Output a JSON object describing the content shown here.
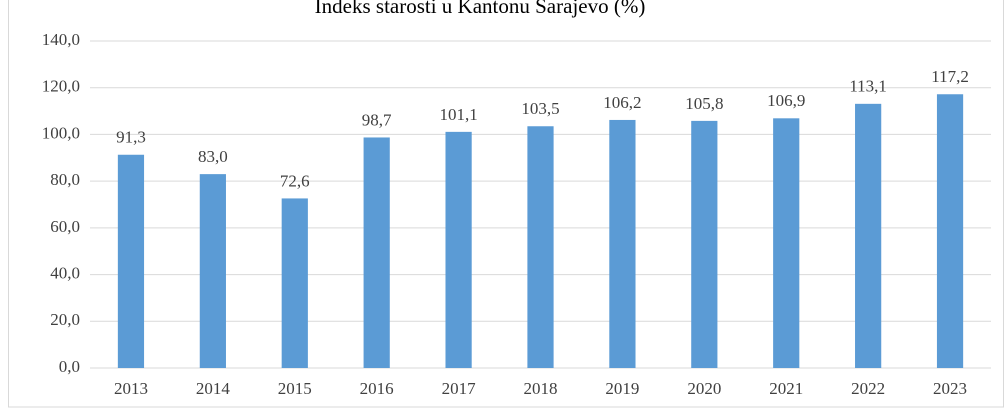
{
  "chart_data": {
    "type": "bar",
    "title": "Indeks starosti u Kantonu Sarajevo (%)",
    "categories": [
      "2013",
      "2014",
      "2015",
      "2016",
      "2017",
      "2018",
      "2019",
      "2020",
      "2021",
      "2022",
      "2023"
    ],
    "values": [
      91.3,
      83.0,
      72.6,
      98.7,
      101.1,
      103.5,
      106.2,
      105.8,
      106.9,
      113.1,
      117.2
    ],
    "value_labels": [
      "91,3",
      "83,0",
      "72,6",
      "98,7",
      "101,1",
      "103,5",
      "106,2",
      "105,8",
      "106,9",
      "113,1",
      "117,2"
    ],
    "color": "#5b9bd5",
    "ylim": [
      0,
      140
    ],
    "yticks": [
      {
        "value": 0,
        "label": "0,0"
      },
      {
        "value": 20,
        "label": "20,0"
      },
      {
        "value": 40,
        "label": "40,0"
      },
      {
        "value": 60,
        "label": "60,0"
      },
      {
        "value": 80,
        "label": "80,0"
      },
      {
        "value": 100,
        "label": "100,0"
      },
      {
        "value": 120,
        "label": "120,0"
      },
      {
        "value": 140,
        "label": "140,0"
      }
    ],
    "grid": true
  }
}
